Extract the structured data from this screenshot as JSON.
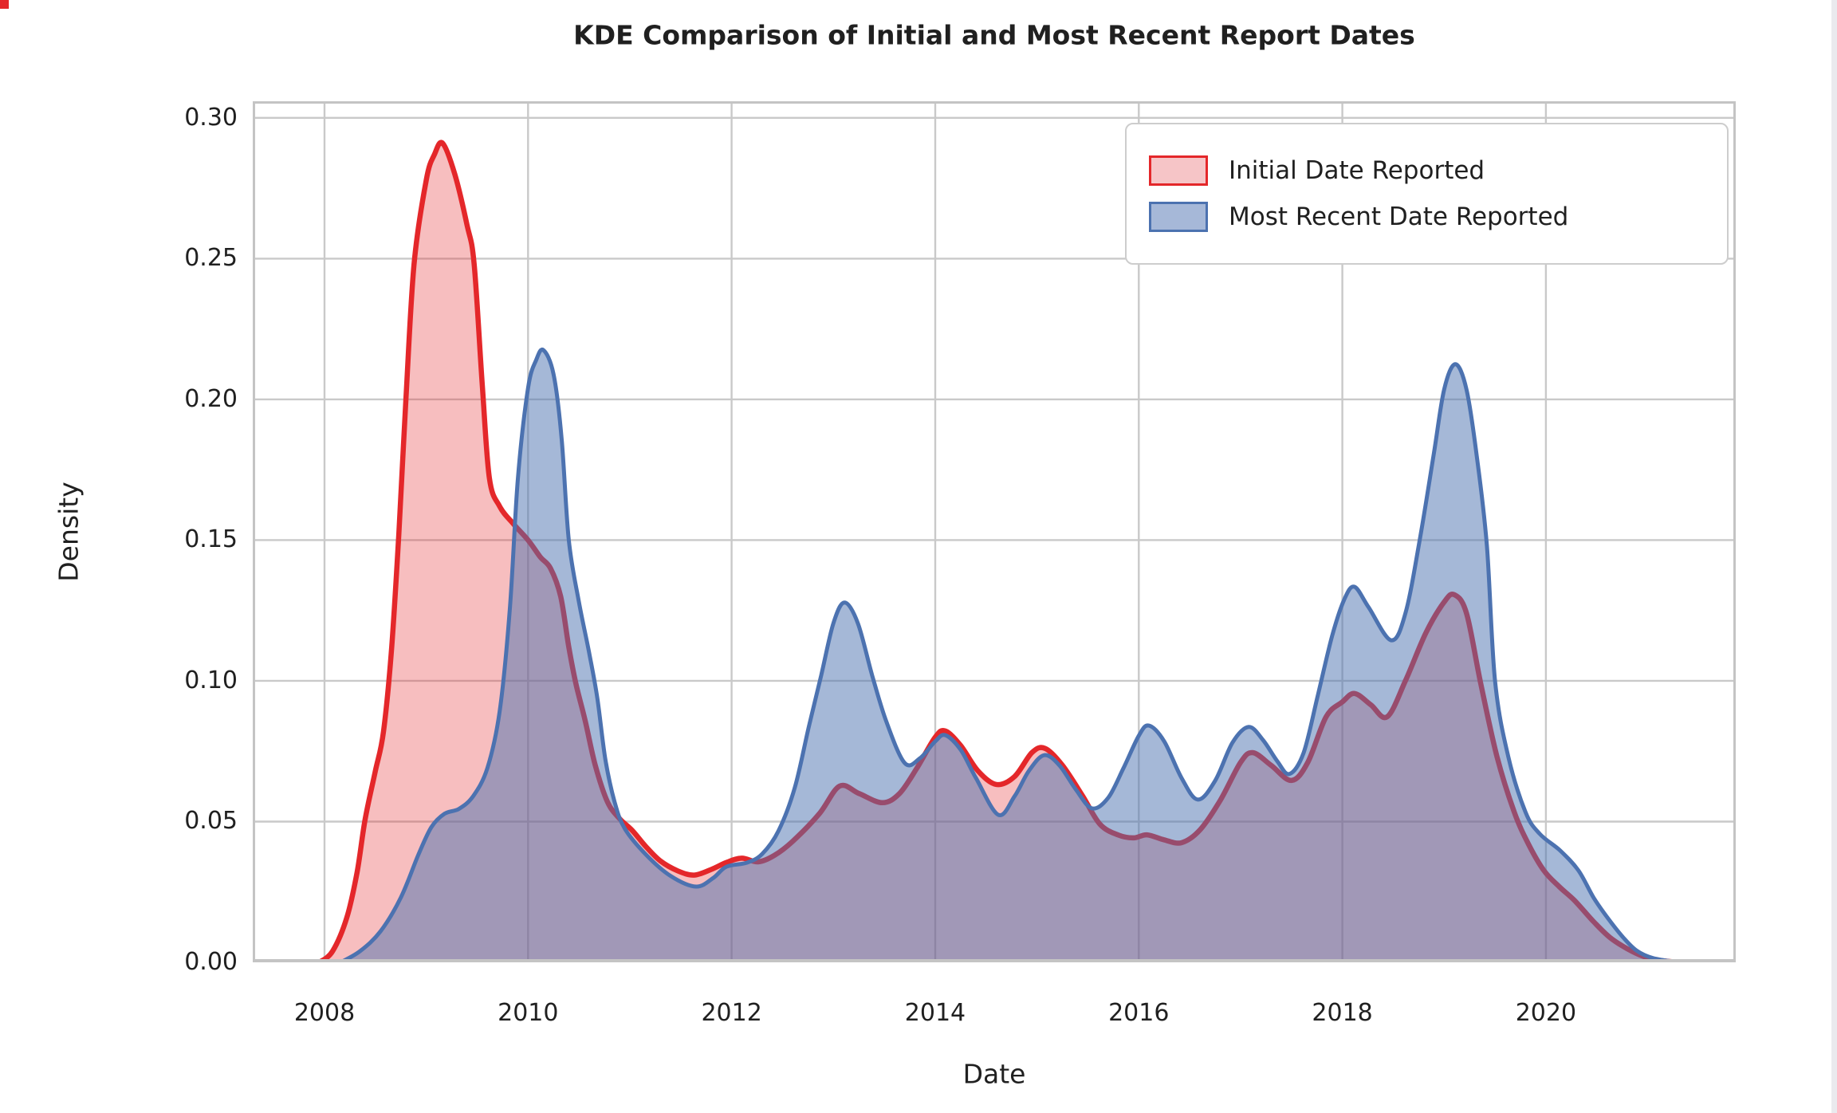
{
  "title": "KDE Comparison of Initial and Most Recent Report Dates",
  "colors": {
    "background": "#ffffff",
    "text": "#202020",
    "grid": "#c9c9c9",
    "frame": "#c4c4c4",
    "red_line": "#e4272a",
    "red_fill": "rgba(228,39,42,0.30)",
    "red_swatch_fill": "#f6c5c7",
    "blue_line": "#4c72b0",
    "blue_fill": "rgba(76,114,176,0.50)",
    "blue_swatch_fill": "#a6b8d8"
  },
  "chart_data": {
    "type": "area",
    "title": "KDE Comparison of Initial and Most Recent Report Dates",
    "xlabel": "Date",
    "ylabel": "Density",
    "xlim": [
      2007.295,
      2021.865
    ],
    "ylim": [
      0,
      0.3059
    ],
    "grid": true,
    "legend_position": "upper right",
    "x_ticks": [
      2008,
      2010,
      2012,
      2014,
      2016,
      2018,
      2020
    ],
    "x_tick_labels": [
      "2008",
      "2010",
      "2012",
      "2014",
      "2016",
      "2018",
      "2020"
    ],
    "y_ticks": [
      0.0,
      0.05,
      0.1,
      0.15,
      0.2,
      0.25,
      0.3
    ],
    "y_tick_labels": [
      "0.00",
      "0.05",
      "0.10",
      "0.15",
      "0.20",
      "0.25",
      "0.30"
    ],
    "series": [
      {
        "name": "Initial Date Reported",
        "peak_summary": "main peak 0.291 at 2009.15; shoulder 0.15 at 2010; minor peaks 0.063 (2013.1), 0.082 (2014.1), 0.076 (2015.1), 0.075 (2017.1), 0.096 (2018.1), 0.131 (2019.1)",
        "points": [
          [
            2007.95,
            0.0
          ],
          [
            2008.08,
            0.004
          ],
          [
            2008.22,
            0.016
          ],
          [
            2008.32,
            0.032
          ],
          [
            2008.4,
            0.051
          ],
          [
            2008.5,
            0.068
          ],
          [
            2008.58,
            0.082
          ],
          [
            2008.66,
            0.112
          ],
          [
            2008.73,
            0.152
          ],
          [
            2008.8,
            0.2
          ],
          [
            2008.88,
            0.248
          ],
          [
            2009.0,
            0.278
          ],
          [
            2009.08,
            0.287
          ],
          [
            2009.16,
            0.291
          ],
          [
            2009.28,
            0.28
          ],
          [
            2009.4,
            0.262
          ],
          [
            2009.47,
            0.248
          ],
          [
            2009.55,
            0.205
          ],
          [
            2009.62,
            0.172
          ],
          [
            2009.72,
            0.162
          ],
          [
            2009.85,
            0.156
          ],
          [
            2010.0,
            0.15
          ],
          [
            2010.12,
            0.144
          ],
          [
            2010.22,
            0.14
          ],
          [
            2010.32,
            0.13
          ],
          [
            2010.4,
            0.112
          ],
          [
            2010.47,
            0.099
          ],
          [
            2010.56,
            0.086
          ],
          [
            2010.66,
            0.07
          ],
          [
            2010.78,
            0.057
          ],
          [
            2010.9,
            0.051
          ],
          [
            2011.02,
            0.047
          ],
          [
            2011.16,
            0.041
          ],
          [
            2011.3,
            0.036
          ],
          [
            2011.47,
            0.0325
          ],
          [
            2011.63,
            0.031
          ],
          [
            2011.8,
            0.033
          ],
          [
            2011.95,
            0.0355
          ],
          [
            2012.1,
            0.037
          ],
          [
            2012.26,
            0.0357
          ],
          [
            2012.42,
            0.038
          ],
          [
            2012.6,
            0.043
          ],
          [
            2012.86,
            0.0527
          ],
          [
            2013.06,
            0.0626
          ],
          [
            2013.25,
            0.06
          ],
          [
            2013.48,
            0.0567
          ],
          [
            2013.65,
            0.06
          ],
          [
            2013.82,
            0.069
          ],
          [
            2014.0,
            0.08
          ],
          [
            2014.1,
            0.0822
          ],
          [
            2014.25,
            0.077
          ],
          [
            2014.42,
            0.068
          ],
          [
            2014.6,
            0.0632
          ],
          [
            2014.78,
            0.066
          ],
          [
            2014.95,
            0.0745
          ],
          [
            2015.08,
            0.076
          ],
          [
            2015.25,
            0.07
          ],
          [
            2015.45,
            0.059
          ],
          [
            2015.62,
            0.049
          ],
          [
            2015.8,
            0.0452
          ],
          [
            2015.95,
            0.0442
          ],
          [
            2016.08,
            0.0453
          ],
          [
            2016.25,
            0.0435
          ],
          [
            2016.42,
            0.0425
          ],
          [
            2016.6,
            0.047
          ],
          [
            2016.8,
            0.0575
          ],
          [
            2017.0,
            0.071
          ],
          [
            2017.12,
            0.0745
          ],
          [
            2017.3,
            0.07
          ],
          [
            2017.5,
            0.0646
          ],
          [
            2017.66,
            0.071
          ],
          [
            2017.84,
            0.0872
          ],
          [
            2018.0,
            0.0925
          ],
          [
            2018.12,
            0.0955
          ],
          [
            2018.28,
            0.0915
          ],
          [
            2018.44,
            0.0872
          ],
          [
            2018.62,
            0.1
          ],
          [
            2018.82,
            0.117
          ],
          [
            2019.0,
            0.128
          ],
          [
            2019.1,
            0.1306
          ],
          [
            2019.22,
            0.124
          ],
          [
            2019.36,
            0.099
          ],
          [
            2019.52,
            0.073
          ],
          [
            2019.69,
            0.0533
          ],
          [
            2019.83,
            0.0419
          ],
          [
            2019.98,
            0.0326
          ],
          [
            2020.13,
            0.0269
          ],
          [
            2020.28,
            0.022
          ],
          [
            2020.47,
            0.0144
          ],
          [
            2020.63,
            0.0088
          ],
          [
            2020.8,
            0.0048
          ],
          [
            2020.95,
            0.0022
          ],
          [
            2021.1,
            0.0008
          ],
          [
            2021.3,
            0.0
          ]
        ]
      },
      {
        "name": "Most Recent Date Reported",
        "peak_summary": "peaks 0.218 (2010.15), 0.128 (2013.1), 0.081 (2014.1), 0.074 (2015.1), 0.084 (2016.1), 0.084 (2017.1), 0.133 (2018.1), 0.213 (2019.1); trough 0.027 at 2011.65; shoulder 0.04 at 2020.2",
        "points": [
          [
            2008.16,
            0.0
          ],
          [
            2008.35,
            0.004
          ],
          [
            2008.55,
            0.011
          ],
          [
            2008.75,
            0.023
          ],
          [
            2008.92,
            0.038
          ],
          [
            2009.05,
            0.048
          ],
          [
            2009.18,
            0.0528
          ],
          [
            2009.32,
            0.0545
          ],
          [
            2009.46,
            0.059
          ],
          [
            2009.6,
            0.069
          ],
          [
            2009.72,
            0.089
          ],
          [
            2009.82,
            0.125
          ],
          [
            2009.9,
            0.172
          ],
          [
            2010.0,
            0.204
          ],
          [
            2010.08,
            0.214
          ],
          [
            2010.15,
            0.2175
          ],
          [
            2010.25,
            0.209
          ],
          [
            2010.33,
            0.186
          ],
          [
            2010.4,
            0.15
          ],
          [
            2010.5,
            0.128
          ],
          [
            2010.6,
            0.11
          ],
          [
            2010.68,
            0.094
          ],
          [
            2010.76,
            0.072
          ],
          [
            2010.85,
            0.057
          ],
          [
            2010.95,
            0.0475
          ],
          [
            2011.16,
            0.0382
          ],
          [
            2011.4,
            0.0307
          ],
          [
            2011.65,
            0.0269
          ],
          [
            2011.82,
            0.03
          ],
          [
            2011.95,
            0.034
          ],
          [
            2012.15,
            0.0354
          ],
          [
            2012.3,
            0.0385
          ],
          [
            2012.46,
            0.0467
          ],
          [
            2012.62,
            0.062
          ],
          [
            2012.76,
            0.084
          ],
          [
            2012.88,
            0.102
          ],
          [
            2013.0,
            0.1205
          ],
          [
            2013.11,
            0.1278
          ],
          [
            2013.24,
            0.1205
          ],
          [
            2013.38,
            0.102
          ],
          [
            2013.52,
            0.0855
          ],
          [
            2013.7,
            0.0708
          ],
          [
            2013.85,
            0.0725
          ],
          [
            2014.0,
            0.0785
          ],
          [
            2014.1,
            0.0807
          ],
          [
            2014.25,
            0.0755
          ],
          [
            2014.4,
            0.0655
          ],
          [
            2014.62,
            0.0524
          ],
          [
            2014.78,
            0.059
          ],
          [
            2014.92,
            0.068
          ],
          [
            2015.07,
            0.0736
          ],
          [
            2015.22,
            0.07
          ],
          [
            2015.38,
            0.0615
          ],
          [
            2015.54,
            0.0547
          ],
          [
            2015.7,
            0.0585
          ],
          [
            2015.85,
            0.069
          ],
          [
            2016.0,
            0.0805
          ],
          [
            2016.1,
            0.0841
          ],
          [
            2016.25,
            0.0785
          ],
          [
            2016.42,
            0.0655
          ],
          [
            2016.58,
            0.0578
          ],
          [
            2016.75,
            0.0645
          ],
          [
            2016.92,
            0.078
          ],
          [
            2017.08,
            0.0836
          ],
          [
            2017.22,
            0.079
          ],
          [
            2017.36,
            0.0715
          ],
          [
            2017.48,
            0.0669
          ],
          [
            2017.62,
            0.0745
          ],
          [
            2017.76,
            0.095
          ],
          [
            2017.9,
            0.116
          ],
          [
            2018.02,
            0.129
          ],
          [
            2018.12,
            0.1334
          ],
          [
            2018.26,
            0.126
          ],
          [
            2018.48,
            0.1144
          ],
          [
            2018.62,
            0.124
          ],
          [
            2018.76,
            0.15
          ],
          [
            2018.9,
            0.181
          ],
          [
            2019.0,
            0.2035
          ],
          [
            2019.11,
            0.2125
          ],
          [
            2019.22,
            0.2035
          ],
          [
            2019.32,
            0.18
          ],
          [
            2019.42,
            0.148
          ],
          [
            2019.5,
            0.1
          ],
          [
            2019.63,
            0.0731
          ],
          [
            2019.8,
            0.0533
          ],
          [
            2019.94,
            0.0456
          ],
          [
            2020.14,
            0.0397
          ],
          [
            2020.32,
            0.0326
          ],
          [
            2020.47,
            0.0229
          ],
          [
            2020.61,
            0.0156
          ],
          [
            2020.76,
            0.0088
          ],
          [
            2020.89,
            0.0042
          ],
          [
            2021.05,
            0.0015
          ],
          [
            2021.3,
            0.0
          ]
        ]
      }
    ]
  },
  "legend": {
    "entries": [
      "Initial Date Reported",
      "Most Recent Date Reported"
    ]
  }
}
